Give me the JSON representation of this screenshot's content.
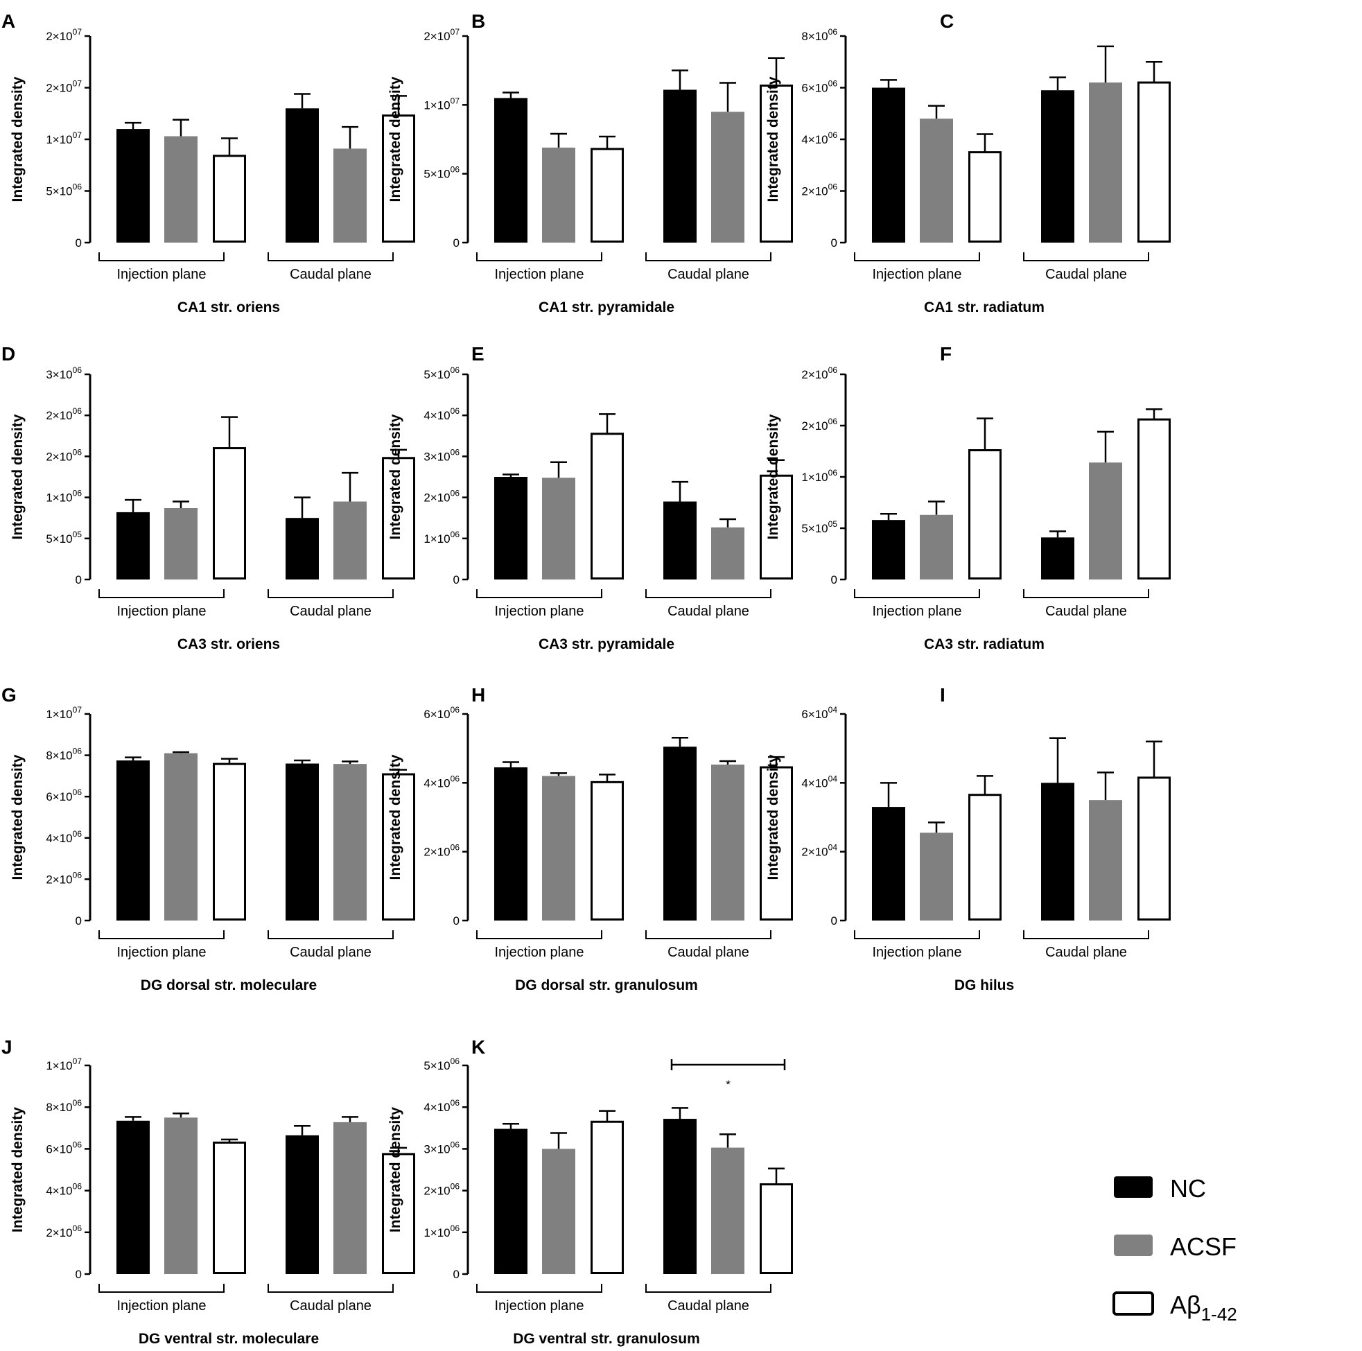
{
  "colors": {
    "nc": "#000000",
    "acsf": "#808080",
    "abeta": "#ffffff",
    "stroke": "#000000"
  },
  "legend": [
    {
      "key": "nc",
      "label": "NC",
      "fill": "#000000"
    },
    {
      "key": "acsf",
      "label": "ACSF",
      "fill": "#808080"
    },
    {
      "key": "abeta",
      "label": "Aβ",
      "sub": "1-42",
      "fill": "#ffffff"
    }
  ],
  "chart_data": [
    {
      "letter": "A",
      "title": "CA1 str. oriens",
      "type": "bar",
      "ylabel": "Integrated density",
      "ylim": [
        0,
        20000000
      ],
      "ticks": [
        "0",
        "5×10^06",
        "1×10^07",
        "1.5×10^07",
        "2×10^07"
      ],
      "tick_labels": [
        {
          "m": "0"
        },
        {
          "m": "5×10",
          "e": "06"
        },
        {
          "m": "1×10",
          "e": "07"
        },
        {
          "m": "2×10",
          "e": "07"
        },
        {
          "m": "2×10",
          "e": "07"
        }
      ],
      "tick_values": [
        0,
        5000000,
        10000000,
        15000000,
        20000000
      ],
      "groups": [
        "Injection plane",
        "Caudal plane"
      ],
      "series": [
        {
          "name": "NC",
          "values": [
            11000000,
            13000000
          ],
          "errors": [
            600000,
            1400000
          ]
        },
        {
          "name": "ACSF",
          "values": [
            10300000,
            9100000
          ],
          "errors": [
            1600000,
            2100000
          ]
        },
        {
          "name": "Aβ1-42",
          "values": [
            8400000,
            12300000
          ],
          "errors": [
            1700000,
            1900000
          ]
        }
      ]
    },
    {
      "letter": "B",
      "title": "CA1 str. pyramidale",
      "type": "bar",
      "ylabel": "Integrated density",
      "ylim": [
        0,
        15000000
      ],
      "tick_labels": [
        {
          "m": "0"
        },
        {
          "m": "5×10",
          "e": "06"
        },
        {
          "m": "1×10",
          "e": "07"
        },
        {
          "m": "2×10",
          "e": "07"
        }
      ],
      "tick_values": [
        0,
        5000000,
        10000000,
        15000000
      ],
      "groups": [
        "Injection plane",
        "Caudal plane"
      ],
      "series": [
        {
          "name": "NC",
          "values": [
            10500000,
            11100000
          ],
          "errors": [
            400000,
            1400000
          ]
        },
        {
          "name": "ACSF",
          "values": [
            6900000,
            9500000
          ],
          "errors": [
            1000000,
            2100000
          ]
        },
        {
          "name": "Aβ1-42",
          "values": [
            6800000,
            11400000
          ],
          "errors": [
            900000,
            2000000
          ]
        }
      ]
    },
    {
      "letter": "C",
      "title": "CA1 str. radiatum",
      "type": "bar",
      "ylabel": "Integrated density",
      "ylim": [
        0,
        8000000
      ],
      "tick_labels": [
        {
          "m": "0"
        },
        {
          "m": "2×10",
          "e": "06"
        },
        {
          "m": "4×10",
          "e": "06"
        },
        {
          "m": "6×10",
          "e": "06"
        },
        {
          "m": "8×10",
          "e": "06"
        }
      ],
      "tick_values": [
        0,
        2000000,
        4000000,
        6000000,
        8000000
      ],
      "groups": [
        "Injection plane",
        "Caudal plane"
      ],
      "series": [
        {
          "name": "NC",
          "values": [
            6000000,
            5900000
          ],
          "errors": [
            300000,
            500000
          ]
        },
        {
          "name": "ACSF",
          "values": [
            4800000,
            6200000
          ],
          "errors": [
            500000,
            1400000
          ]
        },
        {
          "name": "Aβ1-42",
          "values": [
            3500000,
            6200000
          ],
          "errors": [
            700000,
            800000
          ]
        }
      ]
    },
    {
      "letter": "D",
      "title": "CA3 str. oriens",
      "type": "bar",
      "ylabel": "Integrated density",
      "ylim": [
        0,
        2500000
      ],
      "tick_labels": [
        {
          "m": "0"
        },
        {
          "m": "5×10",
          "e": "05"
        },
        {
          "m": "1×10",
          "e": "06"
        },
        {
          "m": "2×10",
          "e": "06"
        },
        {
          "m": "2×10",
          "e": "06"
        },
        {
          "m": "3×10",
          "e": "06"
        }
      ],
      "tick_values": [
        0,
        500000,
        1000000,
        1500000,
        2000000,
        2500000
      ],
      "groups": [
        "Injection plane",
        "Caudal plane"
      ],
      "series": [
        {
          "name": "NC",
          "values": [
            820000,
            750000
          ],
          "errors": [
            150000,
            250000
          ]
        },
        {
          "name": "ACSF",
          "values": [
            870000,
            950000
          ],
          "errors": [
            80000,
            350000
          ]
        },
        {
          "name": "Aβ1-42",
          "values": [
            1600000,
            1480000
          ],
          "errors": [
            380000,
            100000
          ]
        }
      ]
    },
    {
      "letter": "E",
      "title": "CA3 str. pyramidale",
      "type": "bar",
      "ylabel": "Integrated density",
      "ylim": [
        0,
        5000000
      ],
      "tick_labels": [
        {
          "m": "0"
        },
        {
          "m": "1×10",
          "e": "06"
        },
        {
          "m": "2×10",
          "e": "06"
        },
        {
          "m": "3×10",
          "e": "06"
        },
        {
          "m": "4×10",
          "e": "06"
        },
        {
          "m": "5×10",
          "e": "06"
        }
      ],
      "tick_values": [
        0,
        1000000,
        2000000,
        3000000,
        4000000,
        5000000
      ],
      "groups": [
        "Injection plane",
        "Caudal plane"
      ],
      "series": [
        {
          "name": "NC",
          "values": [
            2500000,
            1900000
          ],
          "errors": [
            60000,
            480000
          ]
        },
        {
          "name": "ACSF",
          "values": [
            2480000,
            1270000
          ],
          "errors": [
            380000,
            200000
          ]
        },
        {
          "name": "Aβ1-42",
          "values": [
            3550000,
            2530000
          ],
          "errors": [
            480000,
            380000
          ]
        }
      ]
    },
    {
      "letter": "F",
      "title": "CA3 str. radiatum",
      "type": "bar",
      "ylabel": "Integrated density",
      "ylim": [
        0,
        2000000
      ],
      "tick_labels": [
        {
          "m": "0"
        },
        {
          "m": "5×10",
          "e": "05"
        },
        {
          "m": "1×10",
          "e": "06"
        },
        {
          "m": "2×10",
          "e": "06"
        },
        {
          "m": "2×10",
          "e": "06"
        }
      ],
      "tick_values": [
        0,
        500000,
        1000000,
        1500000,
        2000000
      ],
      "groups": [
        "Injection plane",
        "Caudal plane"
      ],
      "series": [
        {
          "name": "NC",
          "values": [
            580000,
            410000
          ],
          "errors": [
            60000,
            60000
          ]
        },
        {
          "name": "ACSF",
          "values": [
            630000,
            1140000
          ],
          "errors": [
            130000,
            300000
          ]
        },
        {
          "name": "Aβ1-42",
          "values": [
            1260000,
            1560000
          ],
          "errors": [
            310000,
            100000
          ]
        }
      ]
    },
    {
      "letter": "G",
      "title": "DG dorsal str. moleculare",
      "type": "bar",
      "ylabel": "Integrated density",
      "ylim": [
        0,
        10000000
      ],
      "tick_labels": [
        {
          "m": "0"
        },
        {
          "m": "2×10",
          "e": "06"
        },
        {
          "m": "4×10",
          "e": "06"
        },
        {
          "m": "6×10",
          "e": "06"
        },
        {
          "m": "8×10",
          "e": "06"
        },
        {
          "m": "1×10",
          "e": "07"
        }
      ],
      "tick_values": [
        0,
        2000000,
        4000000,
        6000000,
        8000000,
        10000000
      ],
      "groups": [
        "Injection plane",
        "Caudal plane"
      ],
      "series": [
        {
          "name": "NC",
          "values": [
            7750000,
            7600000
          ],
          "errors": [
            150000,
            150000
          ]
        },
        {
          "name": "ACSF",
          "values": [
            8100000,
            7580000
          ],
          "errors": [
            50000,
            120000
          ]
        },
        {
          "name": "Aβ1-42",
          "values": [
            7580000,
            7080000
          ],
          "errors": [
            250000,
            220000
          ]
        }
      ]
    },
    {
      "letter": "H",
      "title": "DG dorsal str. granulosum",
      "type": "bar",
      "ylabel": "Integrated density",
      "ylim": [
        0,
        6000000
      ],
      "tick_labels": [
        {
          "m": "0"
        },
        {
          "m": "2×10",
          "e": "06"
        },
        {
          "m": "4×10",
          "e": "06"
        },
        {
          "m": "6×10",
          "e": "06"
        }
      ],
      "tick_values": [
        0,
        2000000,
        4000000,
        6000000
      ],
      "groups": [
        "Injection plane",
        "Caudal plane"
      ],
      "series": [
        {
          "name": "NC",
          "values": [
            4450000,
            5050000
          ],
          "errors": [
            150000,
            260000
          ]
        },
        {
          "name": "ACSF",
          "values": [
            4200000,
            4530000
          ],
          "errors": [
            80000,
            100000
          ]
        },
        {
          "name": "Aβ1-42",
          "values": [
            4020000,
            4450000
          ],
          "errors": [
            220000,
            300000
          ]
        }
      ]
    },
    {
      "letter": "I",
      "title": "DG hilus",
      "type": "bar",
      "ylabel": "Integrated density",
      "ylim": [
        0,
        60000
      ],
      "tick_labels": [
        {
          "m": "0"
        },
        {
          "m": "2×10",
          "e": "04"
        },
        {
          "m": "4×10",
          "e": "04"
        },
        {
          "m": "6×10",
          "e": "04"
        }
      ],
      "tick_values": [
        0,
        20000,
        40000,
        60000
      ],
      "groups": [
        "Injection plane",
        "Caudal plane"
      ],
      "series": [
        {
          "name": "NC",
          "values": [
            33000,
            40000
          ],
          "errors": [
            7000,
            13000
          ]
        },
        {
          "name": "ACSF",
          "values": [
            25500,
            35000
          ],
          "errors": [
            3000,
            8000
          ]
        },
        {
          "name": "Aβ1-42",
          "values": [
            36500,
            41500
          ],
          "errors": [
            5500,
            10500
          ]
        }
      ]
    },
    {
      "letter": "J",
      "title": "DG ventral str. moleculare",
      "type": "bar",
      "ylabel": "Integrated density",
      "ylim": [
        0,
        10000000
      ],
      "tick_labels": [
        {
          "m": "0"
        },
        {
          "m": "2×10",
          "e": "06"
        },
        {
          "m": "4×10",
          "e": "06"
        },
        {
          "m": "6×10",
          "e": "06"
        },
        {
          "m": "8×10",
          "e": "06"
        },
        {
          "m": "1×10",
          "e": "07"
        }
      ],
      "tick_values": [
        0,
        2000000,
        4000000,
        6000000,
        8000000,
        10000000
      ],
      "groups": [
        "Injection plane",
        "Caudal plane"
      ],
      "series": [
        {
          "name": "NC",
          "values": [
            7350000,
            6650000
          ],
          "errors": [
            180000,
            450000
          ]
        },
        {
          "name": "ACSF",
          "values": [
            7500000,
            7280000
          ],
          "errors": [
            200000,
            250000
          ]
        },
        {
          "name": "Aβ1-42",
          "values": [
            6300000,
            5750000
          ],
          "errors": [
            150000,
            300000
          ]
        }
      ]
    },
    {
      "letter": "K",
      "title": "DG ventral str. granulosum",
      "type": "bar",
      "ylabel": "Integrated density",
      "ylim": [
        0,
        5000000
      ],
      "tick_labels": [
        {
          "m": "0"
        },
        {
          "m": "1×10",
          "e": "06"
        },
        {
          "m": "2×10",
          "e": "06"
        },
        {
          "m": "3×10",
          "e": "06"
        },
        {
          "m": "4×10",
          "e": "06"
        },
        {
          "m": "5×10",
          "e": "06"
        }
      ],
      "tick_values": [
        0,
        1000000,
        2000000,
        3000000,
        4000000,
        5000000
      ],
      "groups": [
        "Injection plane",
        "Caudal plane"
      ],
      "series": [
        {
          "name": "NC",
          "values": [
            3480000,
            3720000
          ],
          "errors": [
            120000,
            260000
          ]
        },
        {
          "name": "ACSF",
          "values": [
            3000000,
            3030000
          ],
          "errors": [
            380000,
            320000
          ]
        },
        {
          "name": "Aβ1-42",
          "values": [
            3650000,
            2150000
          ],
          "errors": [
            260000,
            380000
          ]
        }
      ],
      "significance": {
        "label": "*",
        "group": 1,
        "from": 0,
        "to": 2
      }
    }
  ]
}
